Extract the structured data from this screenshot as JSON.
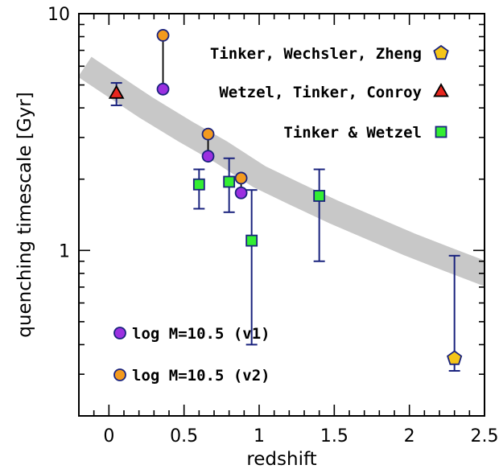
{
  "chart_data": {
    "type": "scatter",
    "xlabel": "redshift",
    "ylabel": "quenching timescale [Gyr]",
    "xlim": [
      -0.2,
      2.5
    ],
    "ylim": [
      0.2,
      10
    ],
    "yscale": "log",
    "x_ticks": [
      0,
      0.5,
      1,
      1.5,
      2,
      2.5
    ],
    "x_tick_labels": [
      "0",
      "0.5",
      "1",
      "1.5",
      "2",
      "2.5"
    ],
    "y_ticks": [
      1,
      10
    ],
    "y_tick_labels": [
      "1",
      "10"
    ],
    "grid": false,
    "band": {
      "color": "#c8c8c8",
      "center": [
        {
          "x": 0.0,
          "y": 5.1
        },
        {
          "x": 0.25,
          "y": 4.0
        },
        {
          "x": 0.5,
          "y": 3.2
        },
        {
          "x": 0.75,
          "y": 2.6
        },
        {
          "x": 1.0,
          "y": 2.05
        },
        {
          "x": 1.25,
          "y": 1.72
        },
        {
          "x": 1.5,
          "y": 1.45
        },
        {
          "x": 1.75,
          "y": 1.24
        },
        {
          "x": 2.0,
          "y": 1.06
        },
        {
          "x": 2.25,
          "y": 0.92
        },
        {
          "x": 2.5,
          "y": 0.8
        }
      ]
    },
    "series": [
      {
        "name": "Tinker, Wechsler, Zheng",
        "marker": "pentagon",
        "color": "#f5c518",
        "points": [
          {
            "x": 2.3,
            "y": 0.35,
            "yerr_low": 0.31,
            "yerr_high": 0.95
          }
        ]
      },
      {
        "name": "Wetzel, Tinker, Conroy",
        "marker": "triangle",
        "color": "#e8261e",
        "points": [
          {
            "x": 0.05,
            "y": 4.6,
            "yerr_low": 4.1,
            "yerr_high": 5.1
          }
        ]
      },
      {
        "name": "Tinker & Wetzel",
        "marker": "square",
        "color": "#33ee33",
        "points": [
          {
            "x": 0.6,
            "y": 1.9,
            "yerr_low": 1.5,
            "yerr_high": 2.2
          },
          {
            "x": 0.8,
            "y": 1.95,
            "yerr_low": 1.45,
            "yerr_high": 2.45
          },
          {
            "x": 0.95,
            "y": 1.1,
            "yerr_low": 0.4,
            "yerr_high": 1.8
          },
          {
            "x": 1.4,
            "y": 1.7,
            "yerr_low": 0.9,
            "yerr_high": 2.2
          }
        ]
      },
      {
        "name": "log M=10.5 (v1)",
        "marker": "circle",
        "color": "#9b30e0",
        "points": [
          {
            "x": 0.36,
            "y": 4.8
          },
          {
            "x": 0.66,
            "y": 2.5
          },
          {
            "x": 0.88,
            "y": 1.75
          }
        ]
      },
      {
        "name": "log M=10.5 (v2)",
        "marker": "circle",
        "color": "#f39a1e",
        "points": [
          {
            "x": 0.36,
            "y": 8.1
          },
          {
            "x": 0.66,
            "y": 3.1
          },
          {
            "x": 0.88,
            "y": 2.02
          }
        ]
      }
    ],
    "connectors": [
      {
        "x": 0.36,
        "y_low": 4.8,
        "y_high": 8.1
      },
      {
        "x": 0.66,
        "y_low": 2.5,
        "y_high": 3.1
      },
      {
        "x": 0.88,
        "y_low": 1.75,
        "y_high": 2.02
      }
    ],
    "legend_top_right": [
      {
        "label": "Tinker, Wechsler, Zheng",
        "marker": "pentagon",
        "color": "#f5c518"
      },
      {
        "label": "Wetzel, Tinker, Conroy",
        "marker": "triangle",
        "color": "#e8261e"
      },
      {
        "label": "Tinker & Wetzel",
        "marker": "square",
        "color": "#33ee33"
      }
    ],
    "legend_bottom_left": [
      {
        "label": "log M=10.5 (v1)",
        "marker": "circle",
        "color": "#9b30e0"
      },
      {
        "label": "log M=10.5 (v2)",
        "marker": "circle",
        "color": "#f39a1e"
      }
    ],
    "errorbar_color": "#1a237e",
    "edge_color": "#1a237e"
  }
}
